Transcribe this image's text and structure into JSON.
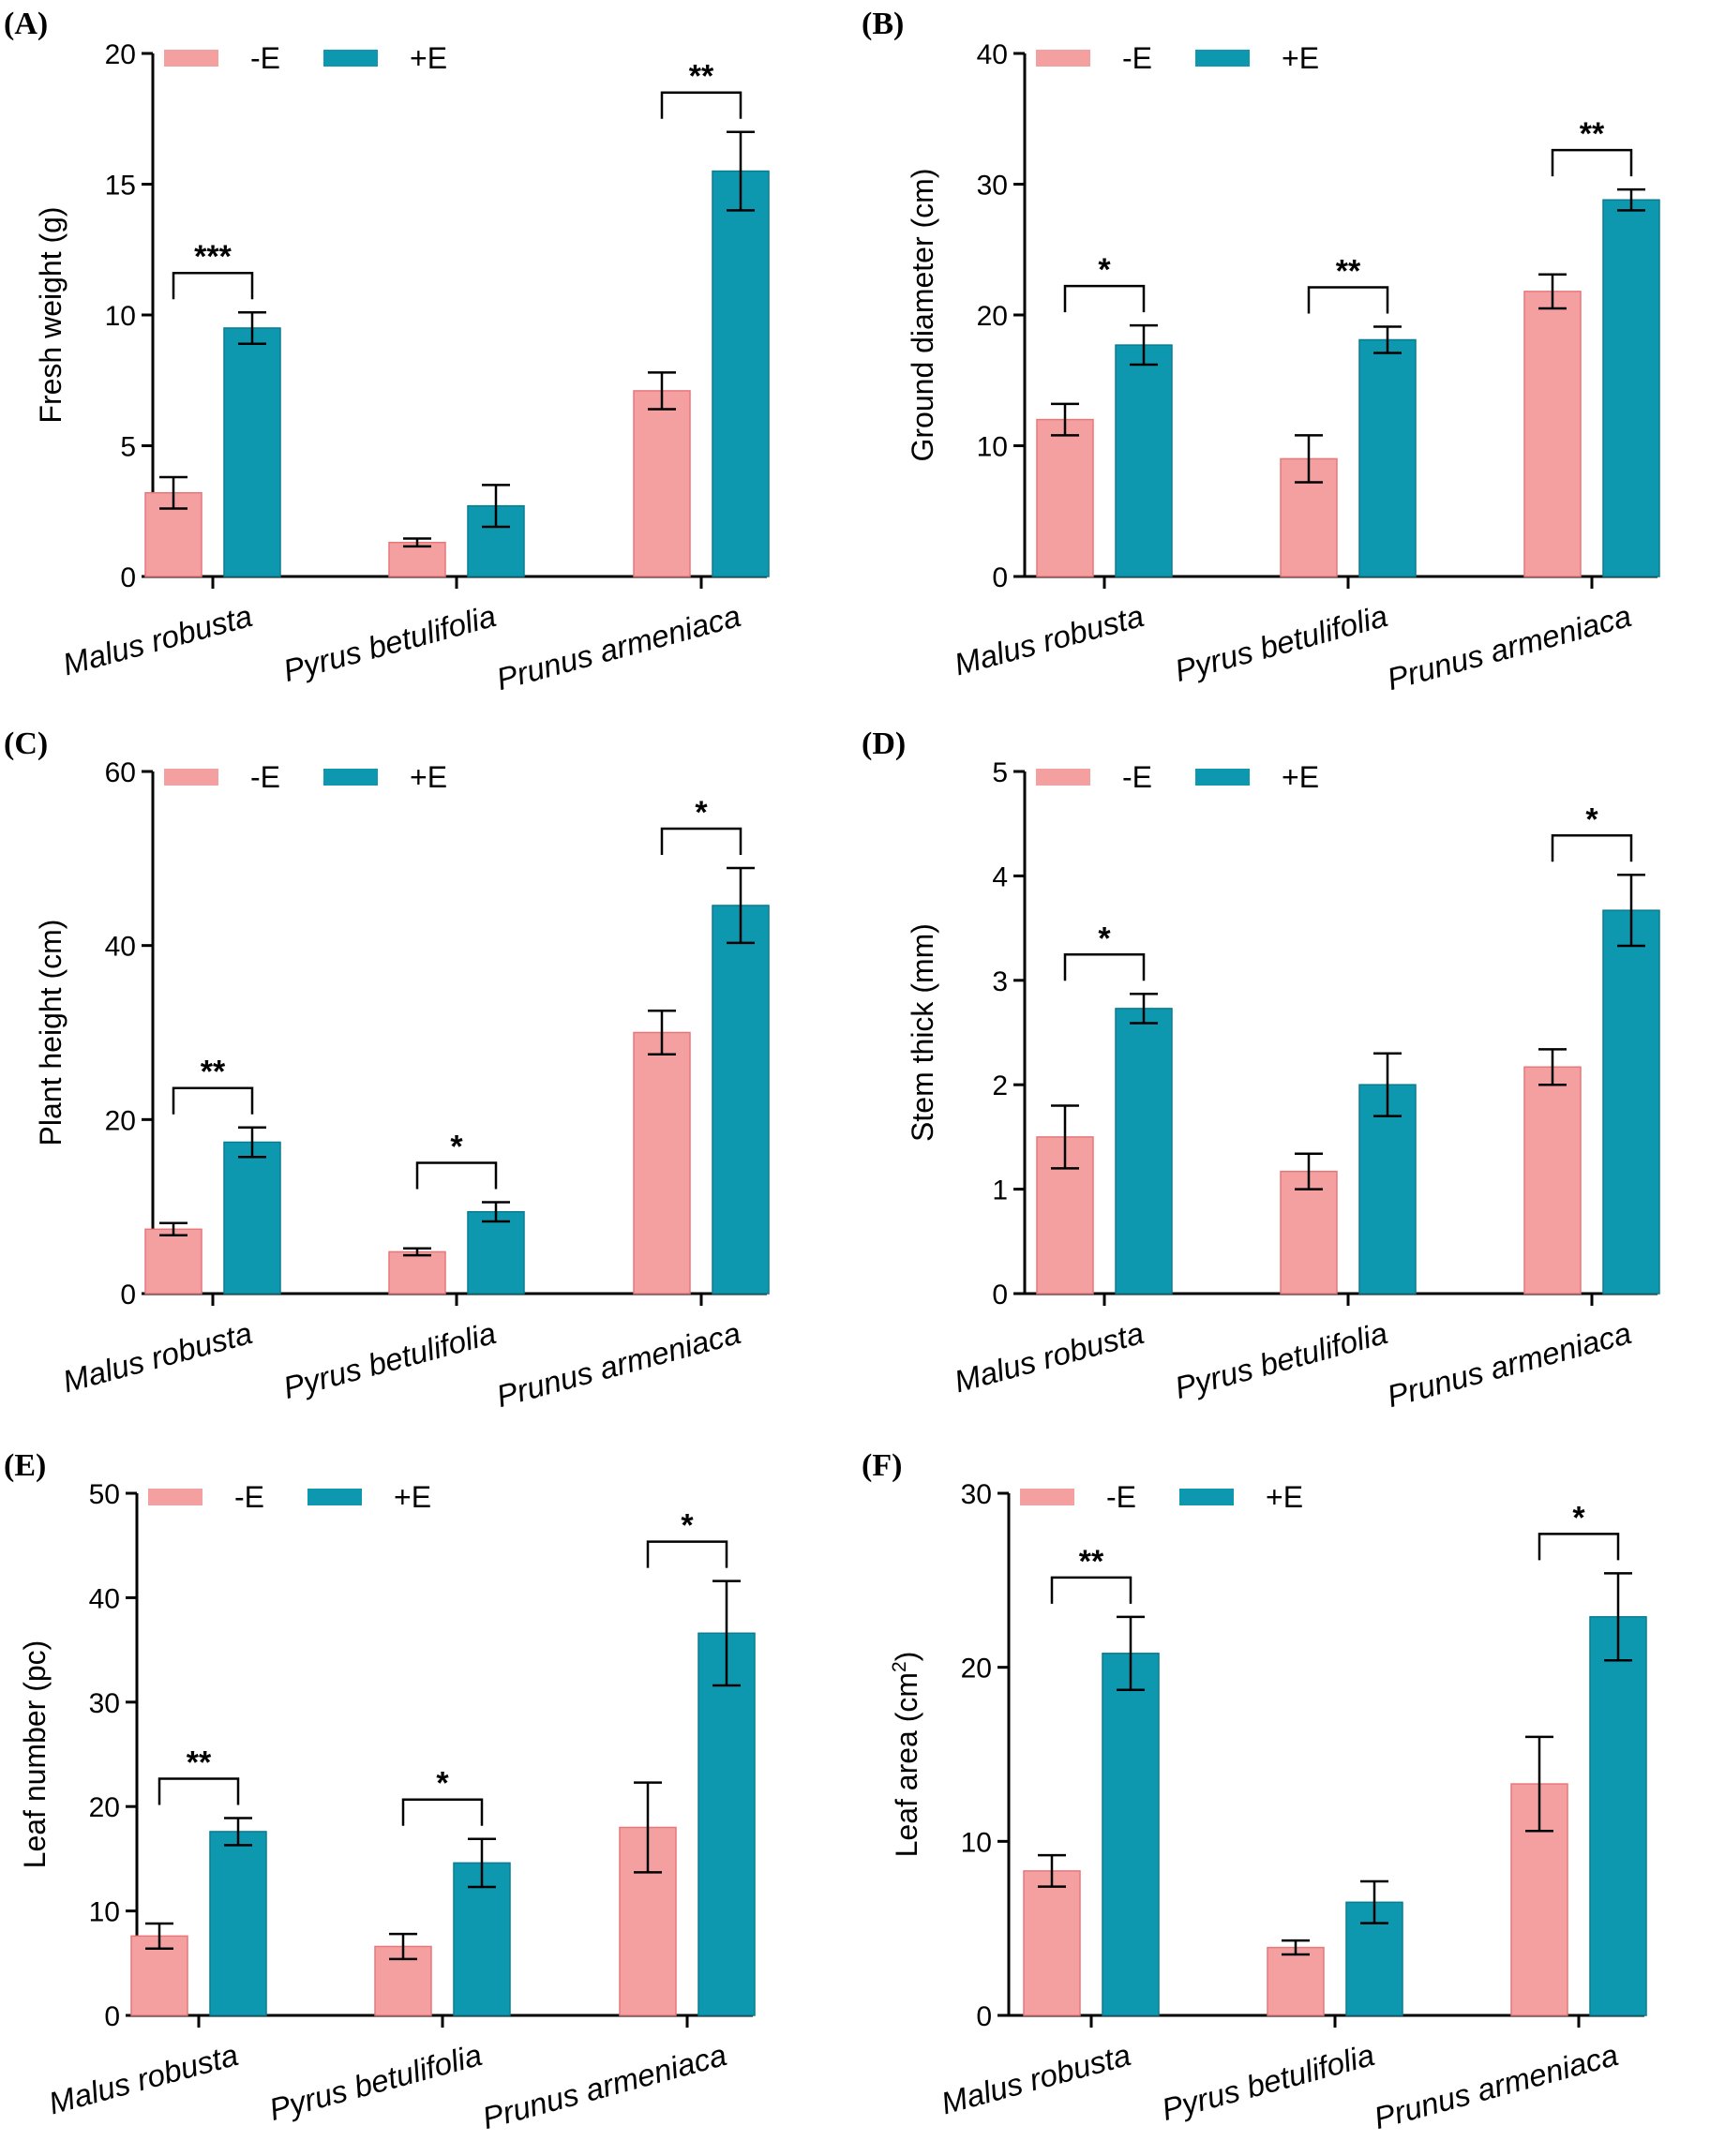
{
  "colors": {
    "minus_e": "#F4A0A0",
    "minus_e_edge": "#E8777A",
    "plus_e": "#0E98B0",
    "plus_e_edge": "#0A7C90",
    "ink": "#000000"
  },
  "chart_data": [
    {
      "type": "bar",
      "panel_label": "(A)",
      "ylabel": "Fresh weight (g)",
      "ylabel_sup": "",
      "ylim": [
        0,
        20
      ],
      "yticks": [
        0,
        5,
        10,
        15,
        20
      ],
      "categories": [
        "Malus robusta",
        "Pyrus betulifolia",
        "Prunus armeniaca"
      ],
      "series": [
        {
          "name": "-E",
          "values": [
            3.2,
            1.3,
            7.1
          ],
          "errors": [
            0.6,
            0.15,
            0.7
          ]
        },
        {
          "name": "+E",
          "values": [
            9.5,
            2.7,
            15.5
          ],
          "errors": [
            0.6,
            0.8,
            1.5
          ]
        }
      ],
      "significance": [
        "***",
        "",
        "**"
      ]
    },
    {
      "type": "bar",
      "panel_label": "(B)",
      "ylabel": "Ground diameter (cm)",
      "ylabel_sup": "",
      "ylim": [
        0,
        40
      ],
      "yticks": [
        0,
        10,
        20,
        30,
        40
      ],
      "categories": [
        "Malus robusta",
        "Pyrus betulifolia",
        "Prunus armeniaca"
      ],
      "series": [
        {
          "name": "-E",
          "values": [
            12.0,
            9.0,
            21.8
          ],
          "errors": [
            1.2,
            1.8,
            1.3
          ]
        },
        {
          "name": "+E",
          "values": [
            17.7,
            18.1,
            28.8
          ],
          "errors": [
            1.5,
            1.0,
            0.8
          ]
        }
      ],
      "significance": [
        "*",
        "**",
        "**"
      ]
    },
    {
      "type": "bar",
      "panel_label": "(C)",
      "ylabel": "Plant height (cm)",
      "ylabel_sup": "",
      "ylim": [
        0,
        60
      ],
      "yticks": [
        0,
        20,
        40,
        60
      ],
      "categories": [
        "Malus robusta",
        "Pyrus betulifolia",
        "Prunus armeniaca"
      ],
      "series": [
        {
          "name": "-E",
          "values": [
            7.4,
            4.8,
            30.0
          ],
          "errors": [
            0.7,
            0.4,
            2.5
          ]
        },
        {
          "name": "+E",
          "values": [
            17.4,
            9.4,
            44.6
          ],
          "errors": [
            1.7,
            1.1,
            4.3
          ]
        }
      ],
      "significance": [
        "**",
        "*",
        "*"
      ]
    },
    {
      "type": "bar",
      "panel_label": "(D)",
      "ylabel": "Stem thick (mm)",
      "ylabel_sup": "",
      "ylim": [
        0,
        5
      ],
      "yticks": [
        0,
        1,
        2,
        3,
        4,
        5
      ],
      "categories": [
        "Malus robusta",
        "Pyrus betulifolia",
        "Prunus armeniaca"
      ],
      "series": [
        {
          "name": "-E",
          "values": [
            1.5,
            1.17,
            2.17
          ],
          "errors": [
            0.3,
            0.17,
            0.17
          ]
        },
        {
          "name": "+E",
          "values": [
            2.73,
            2.0,
            3.67
          ],
          "errors": [
            0.14,
            0.3,
            0.34
          ]
        }
      ],
      "significance": [
        "*",
        "",
        "*"
      ]
    },
    {
      "type": "bar",
      "panel_label": "(E)",
      "ylabel": "Leaf number (pc)",
      "ylabel_sup": "",
      "ylim": [
        0,
        50
      ],
      "yticks": [
        0,
        10,
        20,
        30,
        40,
        50
      ],
      "categories": [
        "Malus robusta",
        "Pyrus betulifolia",
        "Prunus armeniaca"
      ],
      "series": [
        {
          "name": "-E",
          "values": [
            7.6,
            6.6,
            18.0
          ],
          "errors": [
            1.2,
            1.2,
            4.3
          ]
        },
        {
          "name": "+E",
          "values": [
            17.6,
            14.6,
            36.6
          ],
          "errors": [
            1.3,
            2.3,
            5.0
          ]
        }
      ],
      "significance": [
        "**",
        "*",
        "*"
      ]
    },
    {
      "type": "bar",
      "panel_label": "(F)",
      "ylabel": "Leaf area (cm",
      "ylabel_sup": "2",
      "ylabel_end": ")",
      "ylim": [
        0,
        30
      ],
      "yticks": [
        0,
        10,
        20,
        30
      ],
      "categories": [
        "Malus robusta",
        "Pyrus betulifolia",
        "Prunus armeniaca"
      ],
      "series": [
        {
          "name": "-E",
          "values": [
            8.3,
            3.9,
            13.3
          ],
          "errors": [
            0.9,
            0.4,
            2.7
          ]
        },
        {
          "name": "+E",
          "values": [
            20.8,
            6.5,
            22.9
          ],
          "errors": [
            2.1,
            1.2,
            2.5
          ]
        }
      ],
      "significance": [
        "**",
        "",
        "*"
      ]
    }
  ]
}
